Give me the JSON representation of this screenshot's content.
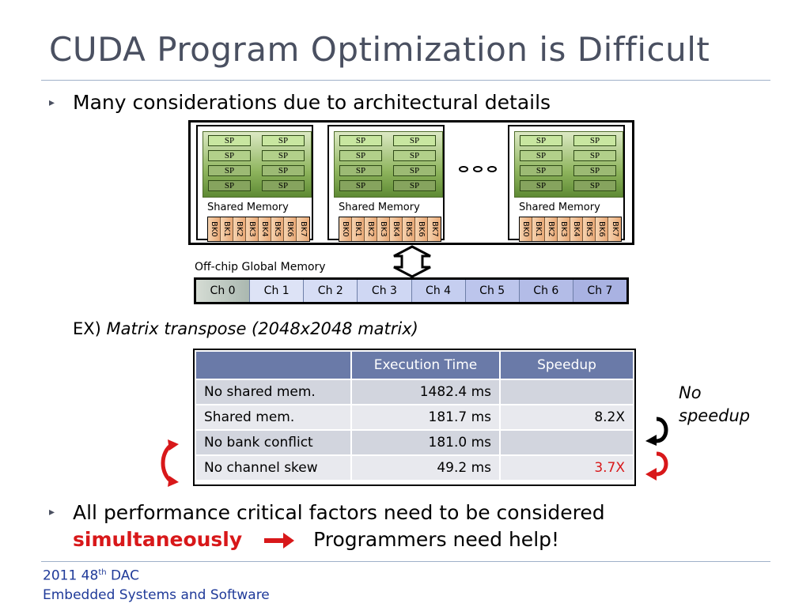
{
  "slide": {
    "title": "CUDA Program Optimization is Difficult",
    "bullet1": "Many considerations due to architectural details",
    "bullet2_part1": "All performance critical factors need to be considered",
    "bullet2_red": "simultaneously",
    "bullet2_part2": "Programmers need help!"
  },
  "diagram": {
    "sp_label": "SP",
    "shared_memory_label": "Shared Memory",
    "banks": [
      "BK0",
      "BK1",
      "BK2",
      "BK3",
      "BK4",
      "BK5",
      "BK6",
      "BK7"
    ],
    "global_memory_label": "Off-chip Global Memory",
    "channels": [
      "Ch 0",
      "Ch 1",
      "Ch 2",
      "Ch 3",
      "Ch 4",
      "Ch 5",
      "Ch 6",
      "Ch 7"
    ]
  },
  "example": {
    "prefix": "EX)",
    "text": "Matrix transpose (2048x2048 matrix)"
  },
  "table": {
    "headers": [
      "",
      "Execution Time",
      "Speedup"
    ],
    "rows": [
      [
        "No shared mem.",
        "1482.4 ms",
        ""
      ],
      [
        "Shared mem.",
        "181.7 ms",
        "8.2X"
      ],
      [
        "No bank conflict",
        "181.0 ms",
        ""
      ],
      [
        "No channel skew",
        "49.2 ms",
        "3.7X"
      ]
    ]
  },
  "annotation": {
    "no_speedup_1": "No",
    "no_speedup_2": "speedup"
  },
  "footer": {
    "year": "2011 48",
    "sup": "th",
    "conf": "DAC",
    "line2": "Embedded Systems and Software"
  },
  "colors": {
    "accent_red": "#d8181a",
    "footer_blue": "#1f3a99",
    "table_header": "#6a7aa8"
  }
}
